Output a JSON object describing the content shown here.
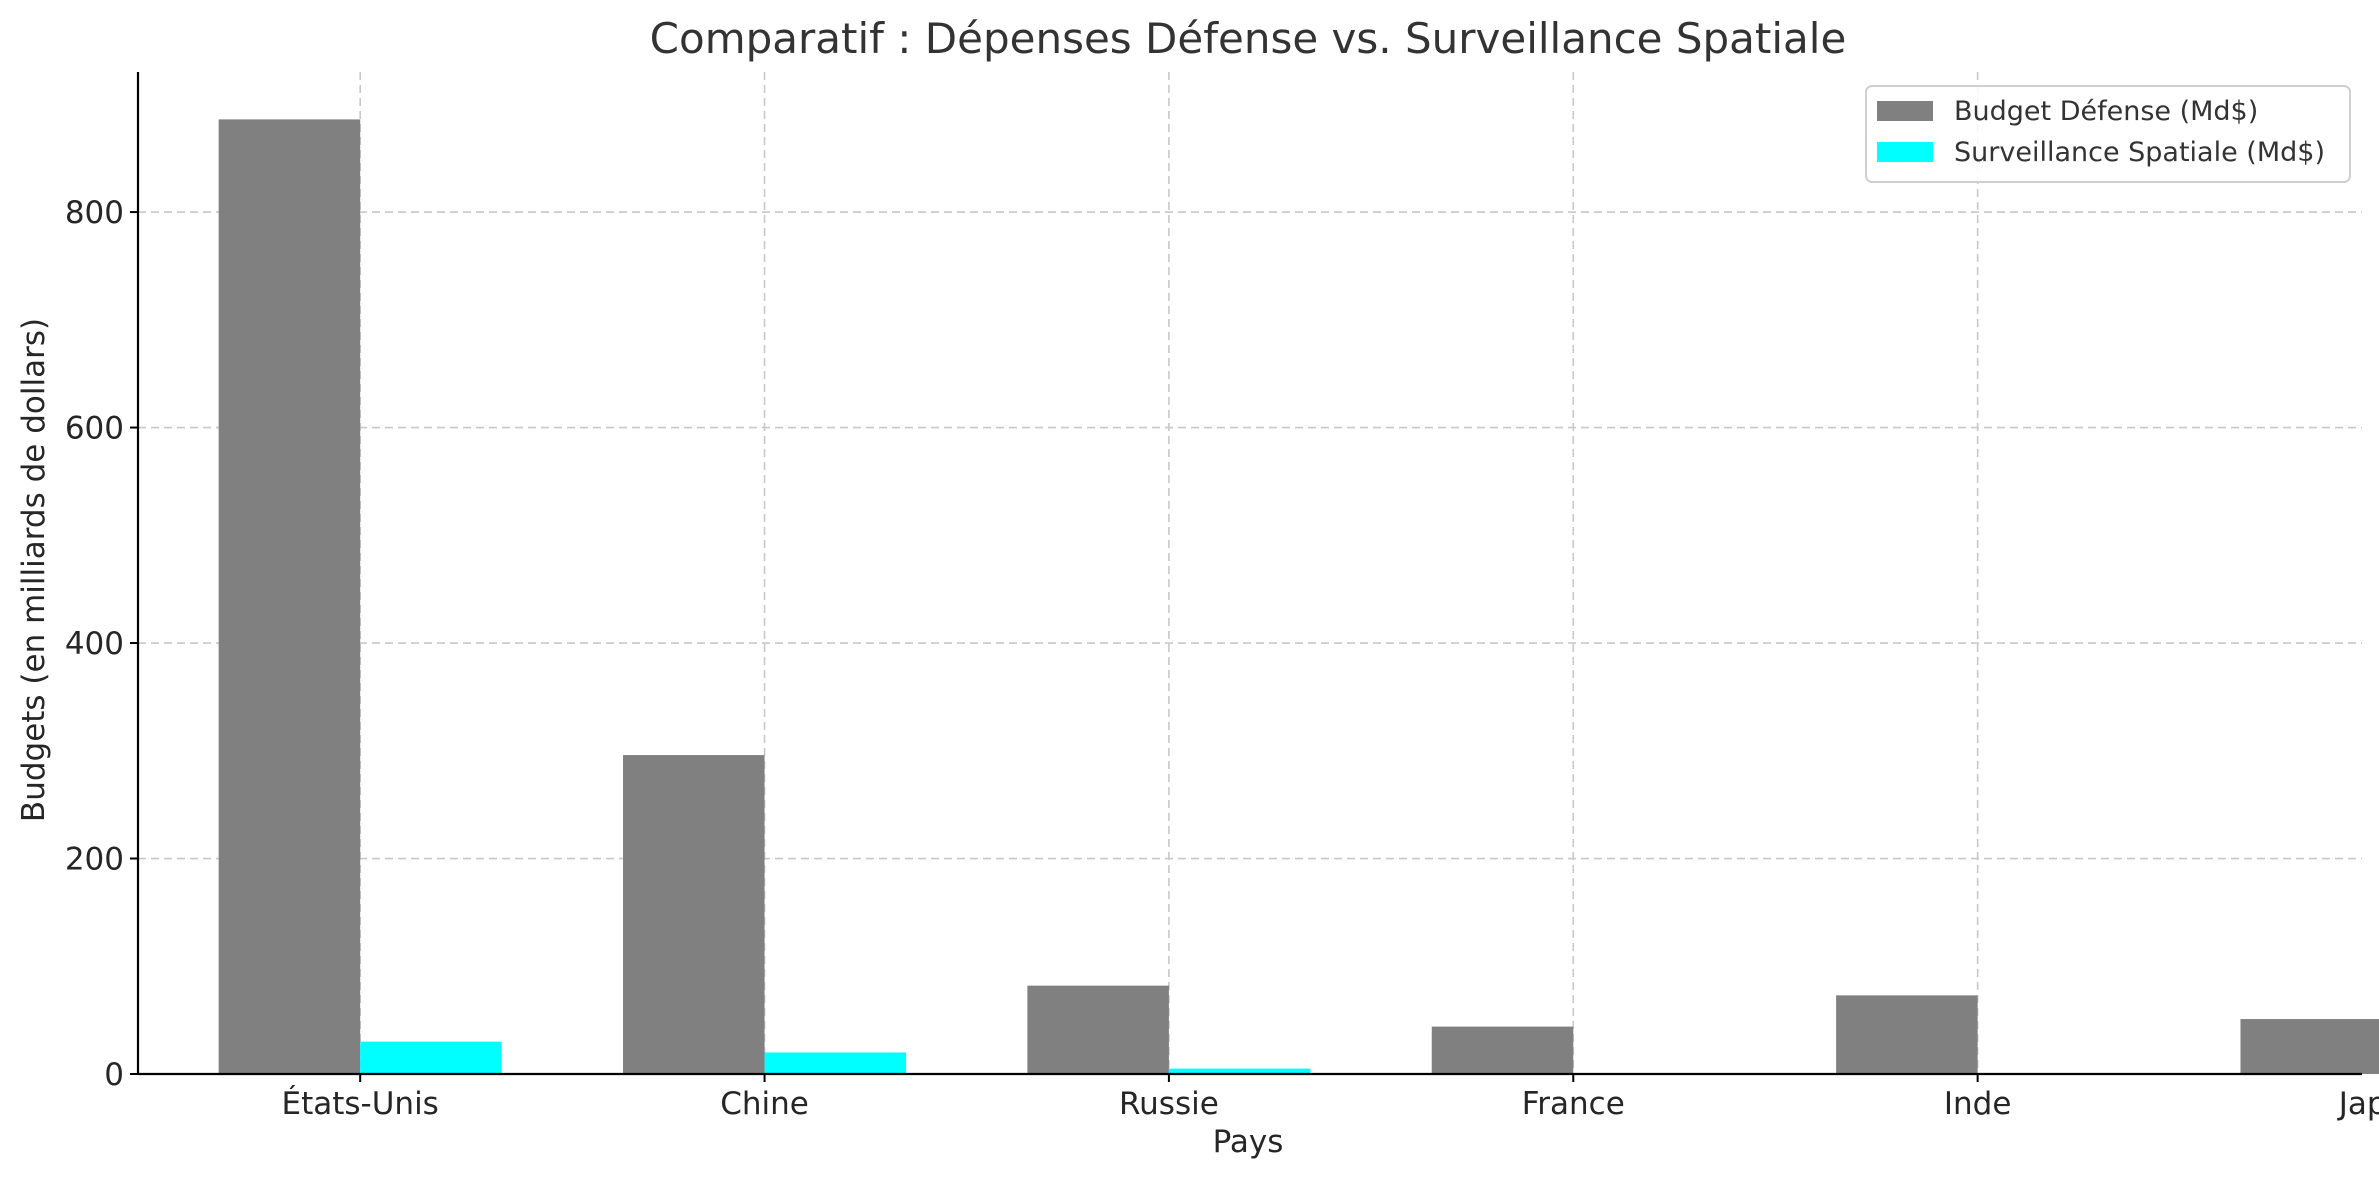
{
  "chart_data": {
    "type": "bar",
    "title": "Comparatif : Dépenses Défense vs. Surveillance Spatiale",
    "xlabel": "Pays",
    "ylabel": "Budgets (en milliards de dollars)",
    "categories": [
      "États-Unis",
      "Chine",
      "Russie",
      "France",
      "Inde",
      "Japon"
    ],
    "series": [
      {
        "name": "Budget Défense (Md$)",
        "color": "#808080",
        "values": [
          886,
          296,
          82,
          44,
          73,
          51
        ]
      },
      {
        "name": "Surveillance Spatiale (Md$)",
        "color": "#00ffff",
        "values": [
          30,
          20,
          5,
          0,
          0,
          0
        ]
      }
    ],
    "ylim": [
      0,
      930
    ],
    "yticks": [
      0,
      200,
      400,
      600,
      800
    ],
    "ytick_labels": [
      "0",
      "200",
      "400",
      "600",
      "800"
    ],
    "grid": true,
    "legend_position": "top-right"
  }
}
